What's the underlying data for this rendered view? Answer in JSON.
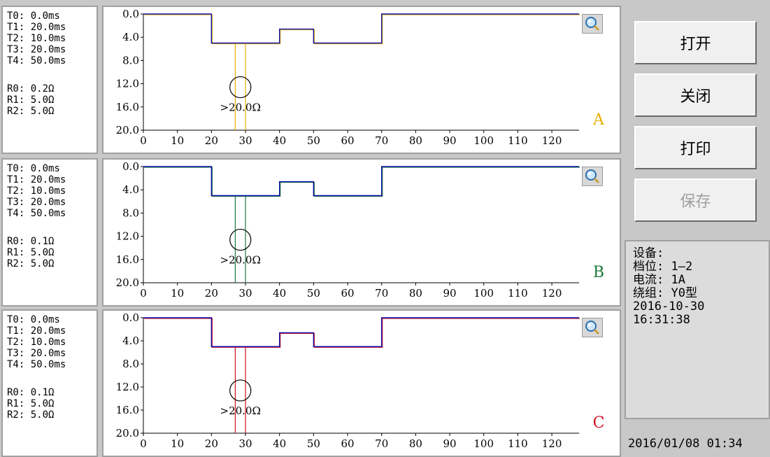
{
  "panels": [
    {
      "id": "A",
      "label": "A",
      "color": "#e8b000",
      "info": [
        "T0: 0.0ms",
        "T1: 20.0ms",
        "T2: 10.0ms",
        "T3: 20.0ms",
        "T4: 50.0ms",
        "",
        "R0: 0.2Ω",
        "R1: 5.0Ω",
        "R2: 5.0Ω"
      ],
      "annotation": ">20.0Ω"
    },
    {
      "id": "B",
      "label": "B",
      "color": "#1a7a3a",
      "info": [
        "T0: 0.0ms",
        "T1: 20.0ms",
        "T2: 10.0ms",
        "T3: 20.0ms",
        "T4: 50.0ms",
        "",
        "R0: 0.1Ω",
        "R1: 5.0Ω",
        "R2: 5.0Ω"
      ],
      "annotation": ">20.0Ω"
    },
    {
      "id": "C",
      "label": "C",
      "color": "#d01020",
      "info": [
        "T0: 0.0ms",
        "T1: 20.0ms",
        "T2: 10.0ms",
        "T3: 20.0ms",
        "T4: 50.0ms",
        "",
        "R0: 0.1Ω",
        "R1: 5.0Ω",
        "R2: 5.0Ω"
      ],
      "annotation": ">20.0Ω"
    }
  ],
  "chart_data": {
    "type": "line",
    "x_ticks": [
      "0",
      "10",
      "20",
      "30",
      "40",
      "50",
      "60",
      "70",
      "80",
      "90",
      "100",
      "110",
      "120"
    ],
    "y_ticks": [
      "0.0",
      "4.0",
      "8.0",
      "12.0",
      "16.0",
      "20.0"
    ],
    "xlim": [
      0,
      128
    ],
    "ylim": [
      0,
      20
    ],
    "y_inverted": true,
    "resistance_trace": {
      "color": "#1010b0",
      "x": [
        0,
        20,
        20,
        40,
        40,
        50,
        50,
        70,
        70,
        128
      ],
      "y": [
        0.0,
        0.0,
        5.0,
        5.0,
        2.6,
        2.6,
        5.0,
        5.0,
        0.0,
        0.0
      ]
    },
    "open_spikes_x": [
      27,
      30
    ],
    "marker_circle": {
      "x": 28.5,
      "y": 12.6
    }
  },
  "buttons": [
    {
      "id": "open",
      "label": "打开",
      "enabled": true
    },
    {
      "id": "close",
      "label": "关闭",
      "enabled": true
    },
    {
      "id": "print",
      "label": "打印",
      "enabled": true
    },
    {
      "id": "save",
      "label": "保存",
      "enabled": false
    }
  ],
  "status": {
    "lines": [
      "设备:",
      "档位: 1—2",
      "电流: 1A",
      "绕组: Y0型",
      "2016-10-30",
      "16:31:38"
    ]
  },
  "clock": "2016/01/08 01:34"
}
